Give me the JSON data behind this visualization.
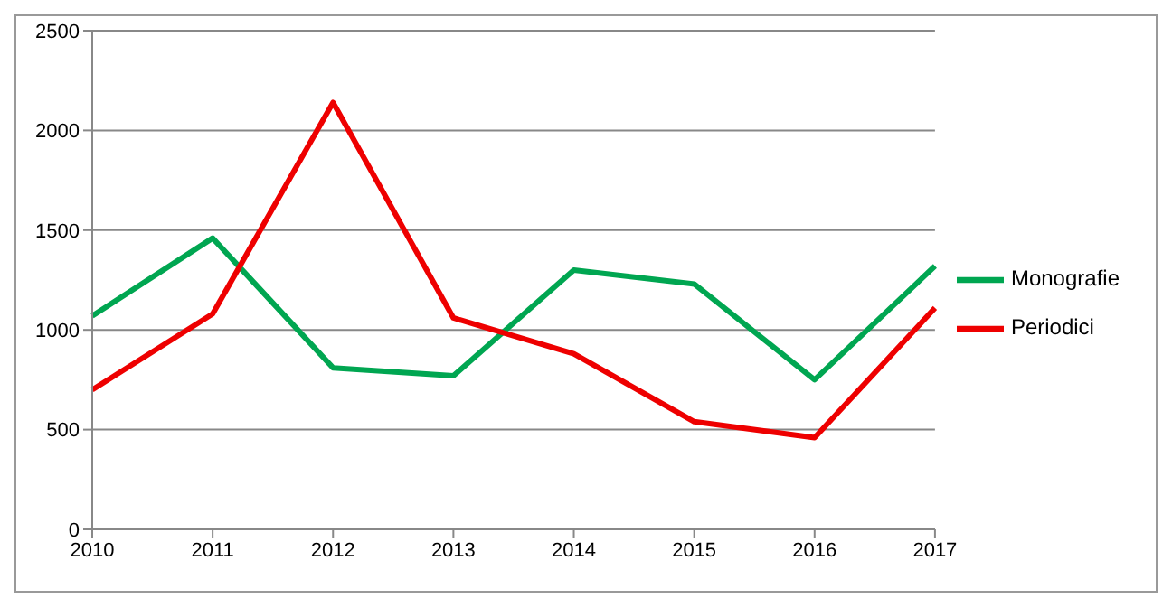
{
  "chart_data": {
    "type": "line",
    "categories": [
      "2010",
      "2011",
      "2012",
      "2013",
      "2014",
      "2015",
      "2016",
      "2017"
    ],
    "series": [
      {
        "name": "Monografie",
        "color": "#00a651",
        "values": [
          1070,
          1460,
          810,
          770,
          1300,
          1230,
          750,
          1320
        ]
      },
      {
        "name": "Periodici",
        "color": "#ee0000",
        "values": [
          700,
          1080,
          2140,
          1060,
          880,
          540,
          460,
          1110
        ]
      }
    ],
    "ylim": [
      0,
      2500
    ],
    "yticks": [
      0,
      500,
      1000,
      1500,
      2000,
      2500
    ],
    "grid": "y",
    "legend": "right",
    "marker": "none",
    "line_style": "solid"
  }
}
